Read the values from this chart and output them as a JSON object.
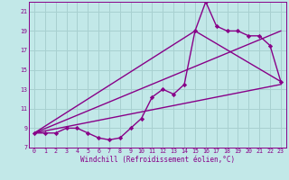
{
  "bg_color": "#c2e8e8",
  "grid_color": "#a8d0d0",
  "line_color": "#880088",
  "marker": "D",
  "marker_size": 2.2,
  "line_width": 1.0,
  "xlabel": "Windchill (Refroidissement éolien,°C)",
  "xlim": [
    -0.5,
    23.5
  ],
  "ylim": [
    7,
    22
  ],
  "xticks": [
    0,
    1,
    2,
    3,
    4,
    5,
    6,
    7,
    8,
    9,
    10,
    11,
    12,
    13,
    14,
    15,
    16,
    17,
    18,
    19,
    20,
    21,
    22,
    23
  ],
  "yticks": [
    7,
    9,
    11,
    13,
    15,
    17,
    19,
    21
  ],
  "main_x": [
    0,
    1,
    2,
    3,
    4,
    5,
    6,
    7,
    8,
    9,
    10,
    11,
    12,
    13,
    14,
    15,
    16,
    17,
    18,
    19,
    20,
    21,
    22,
    23
  ],
  "main_y": [
    8.5,
    8.5,
    8.5,
    9.0,
    9.0,
    8.5,
    8.0,
    7.8,
    8.0,
    9.0,
    10.0,
    12.2,
    13.0,
    12.5,
    13.5,
    19.0,
    22.0,
    19.5,
    19.0,
    19.0,
    18.5,
    18.5,
    17.5,
    13.8
  ],
  "line2_x": [
    0,
    23
  ],
  "line2_y": [
    8.5,
    13.5
  ],
  "line3_x": [
    0,
    15,
    23
  ],
  "line3_y": [
    8.5,
    19.0,
    13.8
  ],
  "line4_x": [
    0,
    23
  ],
  "line4_y": [
    8.5,
    19.0
  ]
}
